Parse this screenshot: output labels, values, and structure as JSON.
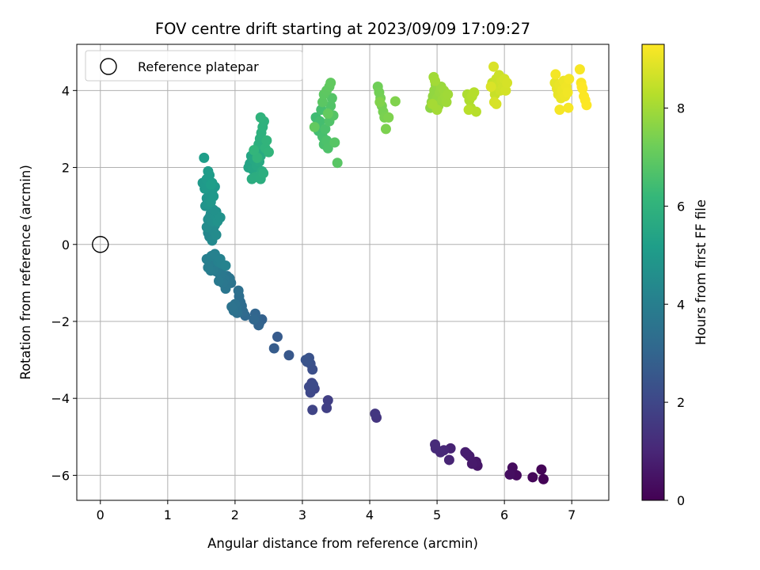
{
  "chart_data": {
    "type": "scatter",
    "title": "FOV centre drift starting at 2023/09/09 17:09:27",
    "xlabel": "Angular distance from reference (arcmin)",
    "ylabel": "Rotation from reference (arcmin)",
    "xlim": [
      -0.35,
      7.55
    ],
    "ylim": [
      -6.65,
      5.2
    ],
    "xticks": [
      0,
      1,
      2,
      3,
      4,
      5,
      6,
      7
    ],
    "yticks": [
      -6,
      -4,
      -2,
      0,
      2,
      4
    ],
    "grid": true,
    "legend": {
      "position": "top-left",
      "entries": [
        "Reference platepar"
      ]
    },
    "reference_point": {
      "x": 0,
      "y": 0
    },
    "colorbar": {
      "label": "Hours from first FF file",
      "colormap": "viridis",
      "range": [
        0,
        9.3
      ],
      "ticks": [
        0,
        2,
        4,
        6,
        8
      ]
    },
    "colors": {
      "viridis": [
        "#440154",
        "#482878",
        "#3e4989",
        "#31688e",
        "#26828e",
        "#1f9e89",
        "#35b779",
        "#6ece58",
        "#b5de2b",
        "#fde725"
      ]
    },
    "points": [
      {
        "x": 6.58,
        "y": -6.1,
        "c": 0.05
      },
      {
        "x": 6.55,
        "y": -5.85,
        "c": 0.1
      },
      {
        "x": 6.42,
        "y": -6.05,
        "c": 0.15
      },
      {
        "x": 6.18,
        "y": -6.0,
        "c": 0.25
      },
      {
        "x": 6.12,
        "y": -5.8,
        "c": 0.3
      },
      {
        "x": 6.08,
        "y": -5.98,
        "c": 0.35
      },
      {
        "x": 5.6,
        "y": -5.75,
        "c": 0.55
      },
      {
        "x": 5.58,
        "y": -5.65,
        "c": 0.6
      },
      {
        "x": 5.52,
        "y": -5.7,
        "c": 0.65
      },
      {
        "x": 5.48,
        "y": -5.5,
        "c": 0.7
      },
      {
        "x": 5.45,
        "y": -5.45,
        "c": 0.75
      },
      {
        "x": 5.42,
        "y": -5.4,
        "c": 0.78
      },
      {
        "x": 5.2,
        "y": -5.3,
        "c": 0.9
      },
      {
        "x": 5.18,
        "y": -5.6,
        "c": 0.95
      },
      {
        "x": 5.1,
        "y": -5.35,
        "c": 1.0
      },
      {
        "x": 5.05,
        "y": -5.4,
        "c": 1.05
      },
      {
        "x": 4.98,
        "y": -5.3,
        "c": 1.1
      },
      {
        "x": 4.97,
        "y": -5.2,
        "c": 1.12
      },
      {
        "x": 4.1,
        "y": -4.5,
        "c": 1.45
      },
      {
        "x": 4.08,
        "y": -4.4,
        "c": 1.5
      },
      {
        "x": 3.38,
        "y": -4.05,
        "c": 1.75
      },
      {
        "x": 3.36,
        "y": -4.25,
        "c": 1.8
      },
      {
        "x": 3.15,
        "y": -4.3,
        "c": 1.9
      },
      {
        "x": 3.18,
        "y": -3.75,
        "c": 1.95
      },
      {
        "x": 3.14,
        "y": -3.6,
        "c": 2.0
      },
      {
        "x": 3.12,
        "y": -3.85,
        "c": 2.05
      },
      {
        "x": 3.1,
        "y": -3.7,
        "c": 2.1
      },
      {
        "x": 3.16,
        "y": -3.65,
        "c": 2.15
      },
      {
        "x": 3.15,
        "y": -3.25,
        "c": 2.25
      },
      {
        "x": 3.12,
        "y": -3.1,
        "c": 2.3
      },
      {
        "x": 3.1,
        "y": -2.95,
        "c": 2.35
      },
      {
        "x": 3.07,
        "y": -3.05,
        "c": 2.4
      },
      {
        "x": 3.05,
        "y": -3.0,
        "c": 2.42
      },
      {
        "x": 2.8,
        "y": -2.88,
        "c": 2.55
      },
      {
        "x": 2.63,
        "y": -2.4,
        "c": 2.65
      },
      {
        "x": 2.58,
        "y": -2.7,
        "c": 2.7
      },
      {
        "x": 2.4,
        "y": -1.95,
        "c": 2.85
      },
      {
        "x": 2.36,
        "y": -2.05,
        "c": 2.9
      },
      {
        "x": 2.35,
        "y": -2.1,
        "c": 2.95
      },
      {
        "x": 2.32,
        "y": -1.92,
        "c": 3.0
      },
      {
        "x": 2.3,
        "y": -1.8,
        "c": 3.05
      },
      {
        "x": 2.28,
        "y": -1.95,
        "c": 3.1
      },
      {
        "x": 2.15,
        "y": -1.85,
        "c": 3.15
      },
      {
        "x": 2.12,
        "y": -1.75,
        "c": 3.2
      },
      {
        "x": 2.1,
        "y": -1.6,
        "c": 3.25
      },
      {
        "x": 2.08,
        "y": -1.5,
        "c": 3.3
      },
      {
        "x": 2.06,
        "y": -1.35,
        "c": 3.35
      },
      {
        "x": 2.05,
        "y": -1.2,
        "c": 3.4
      },
      {
        "x": 2.03,
        "y": -1.78,
        "c": 3.42
      },
      {
        "x": 2.02,
        "y": -1.65,
        "c": 3.45
      },
      {
        "x": 2.0,
        "y": -1.55,
        "c": 3.48
      },
      {
        "x": 1.98,
        "y": -1.72,
        "c": 3.5
      },
      {
        "x": 1.95,
        "y": -1.62,
        "c": 3.52
      },
      {
        "x": 1.94,
        "y": -1.0,
        "c": 3.55
      },
      {
        "x": 1.92,
        "y": -0.88,
        "c": 3.58
      },
      {
        "x": 1.9,
        "y": -0.95,
        "c": 3.6
      },
      {
        "x": 1.88,
        "y": -0.82,
        "c": 3.62
      },
      {
        "x": 1.86,
        "y": -1.15,
        "c": 3.65
      },
      {
        "x": 1.84,
        "y": -0.9,
        "c": 3.68
      },
      {
        "x": 1.82,
        "y": -1.0,
        "c": 3.7
      },
      {
        "x": 1.8,
        "y": -0.75,
        "c": 3.72
      },
      {
        "x": 1.78,
        "y": -0.8,
        "c": 3.75
      },
      {
        "x": 1.76,
        "y": -0.95,
        "c": 3.78
      },
      {
        "x": 1.74,
        "y": -0.6,
        "c": 3.8
      },
      {
        "x": 1.72,
        "y": -0.7,
        "c": 3.82
      },
      {
        "x": 1.7,
        "y": -0.55,
        "c": 3.85
      },
      {
        "x": 1.68,
        "y": -0.65,
        "c": 3.88
      },
      {
        "x": 1.66,
        "y": -0.5,
        "c": 3.9
      },
      {
        "x": 1.64,
        "y": -0.68,
        "c": 3.92
      },
      {
        "x": 1.62,
        "y": -0.45,
        "c": 3.95
      },
      {
        "x": 1.6,
        "y": -0.6,
        "c": 3.98
      },
      {
        "x": 1.58,
        "y": -0.38,
        "c": 4.0
      },
      {
        "x": 1.65,
        "y": -0.3,
        "c": 4.05
      },
      {
        "x": 1.7,
        "y": -0.25,
        "c": 4.08
      },
      {
        "x": 1.75,
        "y": -0.45,
        "c": 4.1
      },
      {
        "x": 1.78,
        "y": -0.38,
        "c": 4.12
      },
      {
        "x": 1.8,
        "y": -0.5,
        "c": 4.15
      },
      {
        "x": 1.86,
        "y": -0.55,
        "c": 4.18
      },
      {
        "x": 1.6,
        "y": 0.3,
        "c": 4.3
      },
      {
        "x": 1.62,
        "y": 0.2,
        "c": 4.33
      },
      {
        "x": 1.64,
        "y": 0.4,
        "c": 4.36
      },
      {
        "x": 1.66,
        "y": 0.1,
        "c": 4.39
      },
      {
        "x": 1.68,
        "y": 0.35,
        "c": 4.42
      },
      {
        "x": 1.7,
        "y": 0.5,
        "c": 4.45
      },
      {
        "x": 1.72,
        "y": 0.25,
        "c": 4.48
      },
      {
        "x": 1.58,
        "y": 0.45,
        "c": 4.5
      },
      {
        "x": 1.6,
        "y": 0.65,
        "c": 4.53
      },
      {
        "x": 1.62,
        "y": 0.7,
        "c": 4.56
      },
      {
        "x": 1.64,
        "y": 0.8,
        "c": 4.59
      },
      {
        "x": 1.66,
        "y": 0.6,
        "c": 4.62
      },
      {
        "x": 1.68,
        "y": 0.9,
        "c": 4.65
      },
      {
        "x": 1.7,
        "y": 0.75,
        "c": 4.68
      },
      {
        "x": 1.72,
        "y": 0.85,
        "c": 4.7
      },
      {
        "x": 1.74,
        "y": 0.6,
        "c": 4.72
      },
      {
        "x": 1.78,
        "y": 0.7,
        "c": 4.74
      },
      {
        "x": 1.56,
        "y": 1.0,
        "c": 4.77
      },
      {
        "x": 1.58,
        "y": 1.2,
        "c": 4.8
      },
      {
        "x": 1.6,
        "y": 1.05,
        "c": 4.83
      },
      {
        "x": 1.62,
        "y": 1.3,
        "c": 4.86
      },
      {
        "x": 1.64,
        "y": 1.1,
        "c": 4.89
      },
      {
        "x": 1.66,
        "y": 1.4,
        "c": 4.92
      },
      {
        "x": 1.68,
        "y": 1.25,
        "c": 4.95
      },
      {
        "x": 1.7,
        "y": 1.5,
        "c": 4.98
      },
      {
        "x": 1.52,
        "y": 1.6,
        "c": 5.0
      },
      {
        "x": 1.55,
        "y": 1.45,
        "c": 5.02
      },
      {
        "x": 1.58,
        "y": 1.7,
        "c": 5.05
      },
      {
        "x": 1.6,
        "y": 1.9,
        "c": 5.08
      },
      {
        "x": 1.62,
        "y": 1.8,
        "c": 5.1
      },
      {
        "x": 1.66,
        "y": 1.6,
        "c": 5.12
      },
      {
        "x": 1.54,
        "y": 2.25,
        "c": 5.15
      },
      {
        "x": 1.64,
        "y": 1.55,
        "c": 5.17
      },
      {
        "x": 2.2,
        "y": 2.0,
        "c": 5.4
      },
      {
        "x": 2.22,
        "y": 2.1,
        "c": 5.43
      },
      {
        "x": 2.24,
        "y": 2.3,
        "c": 5.46
      },
      {
        "x": 2.26,
        "y": 1.95,
        "c": 5.49
      },
      {
        "x": 2.28,
        "y": 2.2,
        "c": 5.52
      },
      {
        "x": 2.3,
        "y": 2.4,
        "c": 5.55
      },
      {
        "x": 2.32,
        "y": 2.05,
        "c": 5.58
      },
      {
        "x": 2.34,
        "y": 2.5,
        "c": 5.61
      },
      {
        "x": 2.36,
        "y": 2.15,
        "c": 5.64
      },
      {
        "x": 2.38,
        "y": 2.3,
        "c": 5.67
      },
      {
        "x": 2.4,
        "y": 1.9,
        "c": 5.7
      },
      {
        "x": 2.25,
        "y": 1.7,
        "c": 5.73
      },
      {
        "x": 2.3,
        "y": 1.75,
        "c": 5.76
      },
      {
        "x": 2.38,
        "y": 1.7,
        "c": 5.79
      },
      {
        "x": 2.42,
        "y": 1.85,
        "c": 5.82
      },
      {
        "x": 2.35,
        "y": 2.6,
        "c": 5.85
      },
      {
        "x": 2.37,
        "y": 2.75,
        "c": 5.88
      },
      {
        "x": 2.39,
        "y": 2.9,
        "c": 5.91
      },
      {
        "x": 2.41,
        "y": 3.05,
        "c": 5.94
      },
      {
        "x": 2.43,
        "y": 3.2,
        "c": 5.97
      },
      {
        "x": 2.38,
        "y": 3.3,
        "c": 6.0
      },
      {
        "x": 2.45,
        "y": 2.5,
        "c": 6.02
      },
      {
        "x": 2.47,
        "y": 2.7,
        "c": 6.04
      },
      {
        "x": 2.5,
        "y": 2.4,
        "c": 6.06
      },
      {
        "x": 2.33,
        "y": 2.25,
        "c": 6.08
      },
      {
        "x": 2.28,
        "y": 2.45,
        "c": 6.1
      },
      {
        "x": 3.2,
        "y": 3.3,
        "c": 6.4
      },
      {
        "x": 3.22,
        "y": 3.1,
        "c": 6.43
      },
      {
        "x": 3.24,
        "y": 2.95,
        "c": 6.46
      },
      {
        "x": 3.26,
        "y": 3.2,
        "c": 6.49
      },
      {
        "x": 3.28,
        "y": 3.5,
        "c": 6.52
      },
      {
        "x": 3.3,
        "y": 2.8,
        "c": 6.55
      },
      {
        "x": 3.32,
        "y": 2.6,
        "c": 6.58
      },
      {
        "x": 3.34,
        "y": 3.0,
        "c": 6.61
      },
      {
        "x": 3.36,
        "y": 2.7,
        "c": 6.64
      },
      {
        "x": 3.38,
        "y": 2.5,
        "c": 6.67
      },
      {
        "x": 3.4,
        "y": 3.2,
        "c": 6.7
      },
      {
        "x": 3.42,
        "y": 3.6,
        "c": 6.73
      },
      {
        "x": 3.44,
        "y": 3.8,
        "c": 6.76
      },
      {
        "x": 3.46,
        "y": 3.35,
        "c": 6.79
      },
      {
        "x": 3.48,
        "y": 2.65,
        "c": 6.82
      },
      {
        "x": 3.52,
        "y": 2.12,
        "c": 6.85
      },
      {
        "x": 3.3,
        "y": 3.7,
        "c": 6.88
      },
      {
        "x": 3.32,
        "y": 3.9,
        "c": 6.91
      },
      {
        "x": 3.36,
        "y": 4.0,
        "c": 6.94
      },
      {
        "x": 3.4,
        "y": 4.1,
        "c": 6.97
      },
      {
        "x": 3.42,
        "y": 4.2,
        "c": 7.0
      },
      {
        "x": 3.18,
        "y": 3.05,
        "c": 7.02
      },
      {
        "x": 3.38,
        "y": 3.4,
        "c": 7.04
      },
      {
        "x": 4.12,
        "y": 4.1,
        "c": 7.25
      },
      {
        "x": 4.14,
        "y": 3.95,
        "c": 7.28
      },
      {
        "x": 4.16,
        "y": 3.8,
        "c": 7.31
      },
      {
        "x": 4.18,
        "y": 3.6,
        "c": 7.34
      },
      {
        "x": 4.2,
        "y": 3.45,
        "c": 7.37
      },
      {
        "x": 4.22,
        "y": 3.3,
        "c": 7.4
      },
      {
        "x": 4.24,
        "y": 3.0,
        "c": 7.43
      },
      {
        "x": 4.28,
        "y": 3.3,
        "c": 7.46
      },
      {
        "x": 4.38,
        "y": 3.72,
        "c": 7.49
      },
      {
        "x": 4.15,
        "y": 3.7,
        "c": 7.51
      },
      {
        "x": 4.9,
        "y": 3.55,
        "c": 7.7
      },
      {
        "x": 4.92,
        "y": 3.7,
        "c": 7.72
      },
      {
        "x": 4.94,
        "y": 3.85,
        "c": 7.74
      },
      {
        "x": 4.96,
        "y": 4.0,
        "c": 7.76
      },
      {
        "x": 4.98,
        "y": 4.15,
        "c": 7.78
      },
      {
        "x": 5.0,
        "y": 3.8,
        "c": 7.8
      },
      {
        "x": 5.02,
        "y": 3.6,
        "c": 7.82
      },
      {
        "x": 5.04,
        "y": 3.95,
        "c": 7.84
      },
      {
        "x": 5.06,
        "y": 4.1,
        "c": 7.86
      },
      {
        "x": 5.08,
        "y": 3.75,
        "c": 7.88
      },
      {
        "x": 5.1,
        "y": 4.0,
        "c": 7.9
      },
      {
        "x": 5.12,
        "y": 3.85,
        "c": 7.92
      },
      {
        "x": 5.14,
        "y": 3.7,
        "c": 7.94
      },
      {
        "x": 5.16,
        "y": 3.9,
        "c": 7.96
      },
      {
        "x": 4.95,
        "y": 4.35,
        "c": 7.98
      },
      {
        "x": 4.97,
        "y": 4.25,
        "c": 8.0
      },
      {
        "x": 5.0,
        "y": 3.5,
        "c": 8.02
      },
      {
        "x": 4.93,
        "y": 3.65,
        "c": 8.04
      },
      {
        "x": 5.45,
        "y": 3.9,
        "c": 8.15
      },
      {
        "x": 5.48,
        "y": 3.75,
        "c": 8.18
      },
      {
        "x": 5.5,
        "y": 3.55,
        "c": 8.21
      },
      {
        "x": 5.52,
        "y": 3.85,
        "c": 8.24
      },
      {
        "x": 5.55,
        "y": 3.95,
        "c": 8.27
      },
      {
        "x": 5.58,
        "y": 3.45,
        "c": 8.3
      },
      {
        "x": 5.47,
        "y": 3.5,
        "c": 8.33
      },
      {
        "x": 5.82,
        "y": 4.2,
        "c": 8.5
      },
      {
        "x": 5.84,
        "y": 4.05,
        "c": 8.52
      },
      {
        "x": 5.86,
        "y": 3.9,
        "c": 8.54
      },
      {
        "x": 5.88,
        "y": 4.3,
        "c": 8.56
      },
      {
        "x": 5.9,
        "y": 4.15,
        "c": 8.58
      },
      {
        "x": 5.92,
        "y": 4.4,
        "c": 8.6
      },
      {
        "x": 5.94,
        "y": 4.0,
        "c": 8.62
      },
      {
        "x": 5.96,
        "y": 4.25,
        "c": 8.64
      },
      {
        "x": 5.98,
        "y": 4.1,
        "c": 8.66
      },
      {
        "x": 6.0,
        "y": 4.3,
        "c": 8.68
      },
      {
        "x": 6.02,
        "y": 4.0,
        "c": 8.7
      },
      {
        "x": 6.04,
        "y": 4.2,
        "c": 8.72
      },
      {
        "x": 5.85,
        "y": 3.7,
        "c": 8.74
      },
      {
        "x": 5.88,
        "y": 3.65,
        "c": 8.76
      },
      {
        "x": 5.84,
        "y": 4.62,
        "c": 8.78
      },
      {
        "x": 5.8,
        "y": 4.1,
        "c": 8.8
      },
      {
        "x": 6.75,
        "y": 4.2,
        "c": 8.95
      },
      {
        "x": 6.78,
        "y": 4.05,
        "c": 8.97
      },
      {
        "x": 6.8,
        "y": 3.9,
        "c": 8.99
      },
      {
        "x": 6.82,
        "y": 4.15,
        "c": 9.01
      },
      {
        "x": 6.84,
        "y": 3.8,
        "c": 9.03
      },
      {
        "x": 6.86,
        "y": 4.0,
        "c": 9.05
      },
      {
        "x": 6.88,
        "y": 4.25,
        "c": 9.07
      },
      {
        "x": 6.9,
        "y": 3.85,
        "c": 9.09
      },
      {
        "x": 6.92,
        "y": 4.1,
        "c": 9.11
      },
      {
        "x": 6.94,
        "y": 3.95,
        "c": 9.13
      },
      {
        "x": 6.96,
        "y": 4.3,
        "c": 9.15
      },
      {
        "x": 6.76,
        "y": 4.42,
        "c": 9.17
      },
      {
        "x": 6.82,
        "y": 3.5,
        "c": 9.19
      },
      {
        "x": 6.95,
        "y": 3.55,
        "c": 9.2
      },
      {
        "x": 7.12,
        "y": 4.55,
        "c": 9.22
      },
      {
        "x": 7.14,
        "y": 4.2,
        "c": 9.24
      },
      {
        "x": 7.16,
        "y": 4.05,
        "c": 9.26
      },
      {
        "x": 7.18,
        "y": 3.85,
        "c": 9.27
      },
      {
        "x": 7.2,
        "y": 3.75,
        "c": 9.28
      },
      {
        "x": 7.22,
        "y": 3.62,
        "c": 9.29
      },
      {
        "x": 7.15,
        "y": 4.1,
        "c": 9.3
      }
    ]
  }
}
